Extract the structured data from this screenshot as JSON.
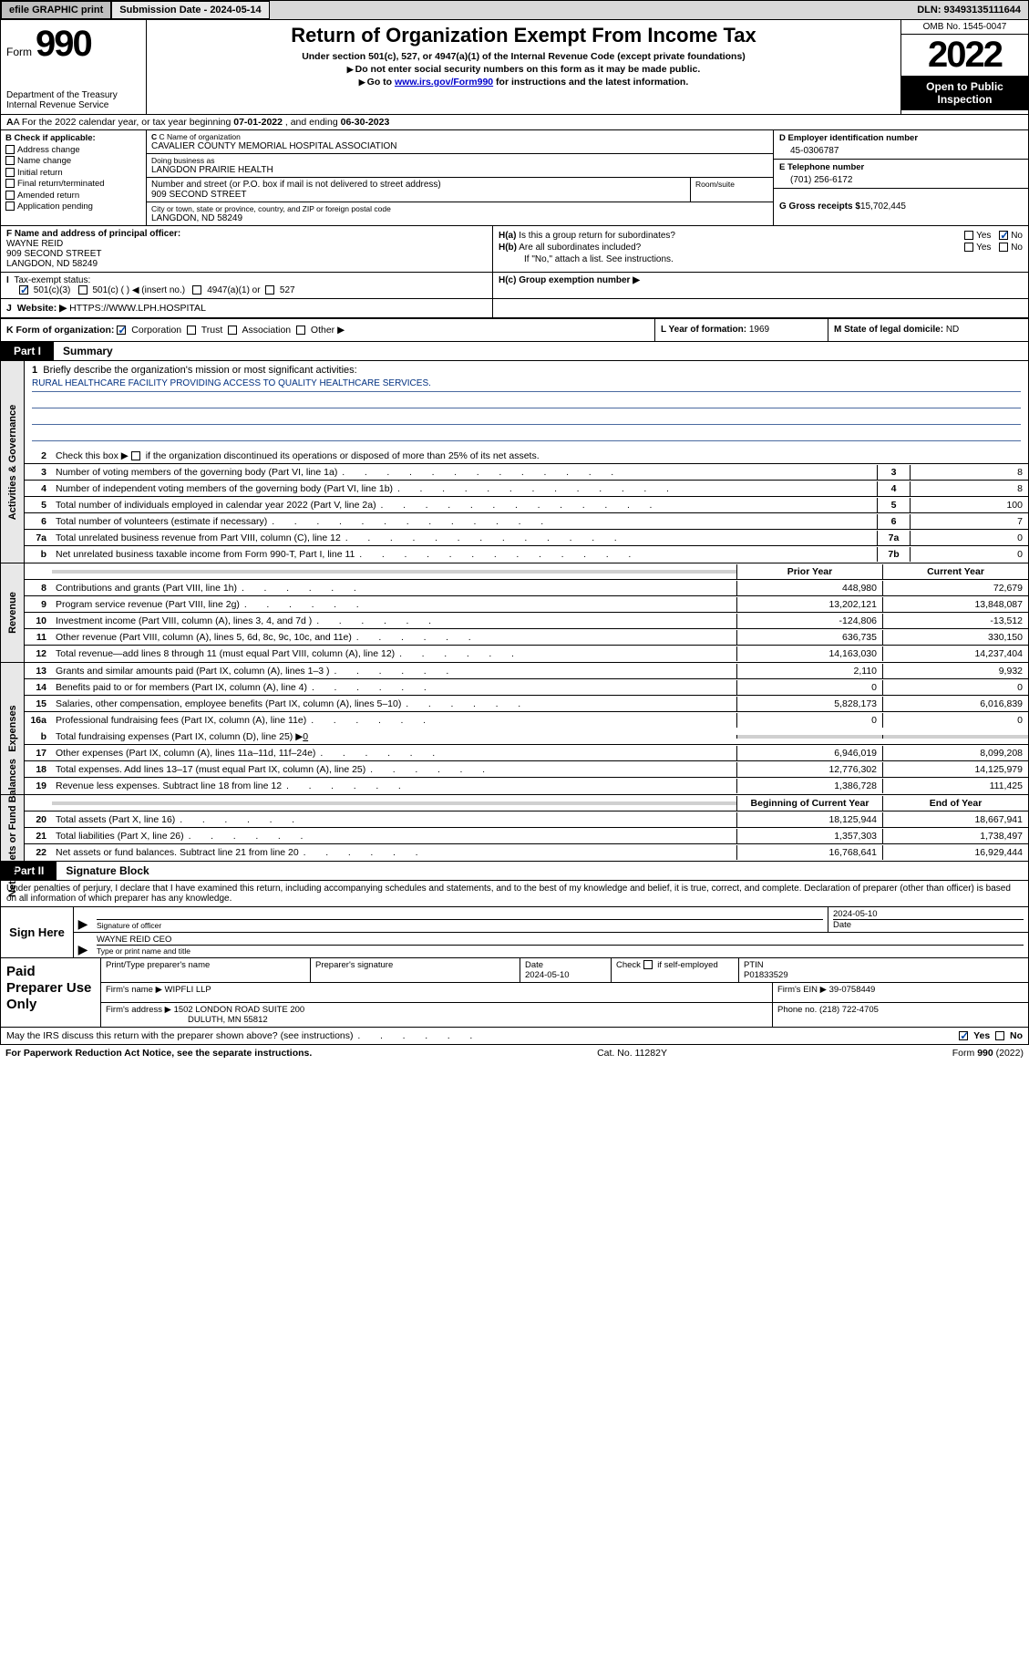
{
  "topbar": {
    "efile_label": "efile GRAPHIC print",
    "submission_label": "Submission Date - 2024-05-14",
    "dln_label": "DLN: 93493135111644"
  },
  "header": {
    "form_word": "Form",
    "form_number": "990",
    "dept": "Department of the Treasury Internal Revenue Service",
    "title": "Return of Organization Exempt From Income Tax",
    "subtitle": "Under section 501(c), 527, or 4947(a)(1) of the Internal Revenue Code (except private foundations)",
    "arrow1": "Do not enter social security numbers on this form as it may be made public.",
    "arrow2_pre": "Go to ",
    "arrow2_link": "www.irs.gov/Form990",
    "arrow2_post": " for instructions and the latest information.",
    "omb": "OMB No. 1545-0047",
    "year": "2022",
    "open_public": "Open to Public Inspection"
  },
  "row_a": {
    "prefix": "A For the 2022 calendar year, or tax year beginning ",
    "begin": "07-01-2022",
    "mid": " , and ending ",
    "end": "06-30-2023"
  },
  "section_b": {
    "heading": "B Check if applicable:",
    "items": [
      "Address change",
      "Name change",
      "Initial return",
      "Final return/terminated",
      "Amended return",
      "Application pending"
    ]
  },
  "section_c": {
    "name_lbl": "C Name of organization",
    "name": "CAVALIER COUNTY MEMORIAL HOSPITAL ASSOCIATION",
    "dba_lbl": "Doing business as",
    "dba": "LANGDON PRAIRIE HEALTH",
    "street_lbl": "Number and street (or P.O. box if mail is not delivered to street address)",
    "street": "909 SECOND STREET",
    "room_lbl": "Room/suite",
    "city_lbl": "City or town, state or province, country, and ZIP or foreign postal code",
    "city": "LANGDON, ND  58249"
  },
  "section_d": {
    "ein_lbl": "D Employer identification number",
    "ein": "45-0306787",
    "phone_lbl": "E Telephone number",
    "phone": "(701) 256-6172",
    "gross_lbl": "G Gross receipts $",
    "gross": "15,702,445"
  },
  "section_f": {
    "lbl": "F Name and address of principal officer:",
    "name": "WAYNE REID",
    "addr1": "909 SECOND STREET",
    "addr2": "LANGDON, ND  58249"
  },
  "section_h": {
    "a_lbl": "H(a)  Is this a group return for subordinates?",
    "b_lbl": "H(b)  Are all subordinates included?",
    "b_note": "If \"No,\" attach a list. See instructions.",
    "c_lbl": "H(c)  Group exemption number ▶",
    "yes": "Yes",
    "no": "No"
  },
  "section_i": {
    "lbl": "Tax-exempt status:",
    "opt1": "501(c)(3)",
    "opt2": "501(c) (  ) ◀ (insert no.)",
    "opt3": "4947(a)(1) or",
    "opt4": "527"
  },
  "section_j": {
    "lbl": "Website: ▶",
    "val": "HTTPS://WWW.LPH.HOSPITAL"
  },
  "section_k": {
    "lbl": "K Form of organization:",
    "opts": [
      "Corporation",
      "Trust",
      "Association",
      "Other ▶"
    ],
    "l_lbl": "L Year of formation:",
    "l_val": "1969",
    "m_lbl": "M State of legal domicile:",
    "m_val": "ND"
  },
  "parts": {
    "p1_tab": "Part I",
    "p1_title": "Summary",
    "p2_tab": "Part II",
    "p2_title": "Signature Block"
  },
  "summary": {
    "vtabs": {
      "gov": "Activities & Governance",
      "rev": "Revenue",
      "exp": "Expenses",
      "net": "Net Assets or Fund Balances"
    },
    "line1_lbl": "Briefly describe the organization's mission or most significant activities:",
    "line1_val": "RURAL HEALTHCARE FACILITY PROVIDING ACCESS TO QUALITY HEALTHCARE SERVICES.",
    "line2": "Check this box ▶       if the organization discontinued its operations or disposed of more than 25% of its net assets.",
    "rows_single": [
      {
        "n": "3",
        "d": "Number of voting members of the governing body (Part VI, line 1a)",
        "box": "3",
        "v": "8"
      },
      {
        "n": "4",
        "d": "Number of independent voting members of the governing body (Part VI, line 1b)",
        "box": "4",
        "v": "8"
      },
      {
        "n": "5",
        "d": "Total number of individuals employed in calendar year 2022 (Part V, line 2a)",
        "box": "5",
        "v": "100"
      },
      {
        "n": "6",
        "d": "Total number of volunteers (estimate if necessary)",
        "box": "6",
        "v": "7"
      },
      {
        "n": "7a",
        "d": "Total unrelated business revenue from Part VIII, column (C), line 12",
        "box": "7a",
        "v": "0"
      },
      {
        "n": "b",
        "d": "Net unrelated business taxable income from Form 990-T, Part I, line 11",
        "box": "7b",
        "v": "0"
      }
    ],
    "col_headers": {
      "prior": "Prior Year",
      "curr": "Current Year"
    },
    "rows_rev": [
      {
        "n": "8",
        "d": "Contributions and grants (Part VIII, line 1h)",
        "p": "448,980",
        "c": "72,679"
      },
      {
        "n": "9",
        "d": "Program service revenue (Part VIII, line 2g)",
        "p": "13,202,121",
        "c": "13,848,087"
      },
      {
        "n": "10",
        "d": "Investment income (Part VIII, column (A), lines 3, 4, and 7d )",
        "p": "-124,806",
        "c": "-13,512"
      },
      {
        "n": "11",
        "d": "Other revenue (Part VIII, column (A), lines 5, 6d, 8c, 9c, 10c, and 11e)",
        "p": "636,735",
        "c": "330,150"
      },
      {
        "n": "12",
        "d": "Total revenue—add lines 8 through 11 (must equal Part VIII, column (A), line 12)",
        "p": "14,163,030",
        "c": "14,237,404"
      }
    ],
    "rows_exp": [
      {
        "n": "13",
        "d": "Grants and similar amounts paid (Part IX, column (A), lines 1–3 )",
        "p": "2,110",
        "c": "9,932"
      },
      {
        "n": "14",
        "d": "Benefits paid to or for members (Part IX, column (A), line 4)",
        "p": "0",
        "c": "0"
      },
      {
        "n": "15",
        "d": "Salaries, other compensation, employee benefits (Part IX, column (A), lines 5–10)",
        "p": "5,828,173",
        "c": "6,016,839"
      },
      {
        "n": "16a",
        "d": "Professional fundraising fees (Part IX, column (A), line 11e)",
        "p": "0",
        "c": "0"
      }
    ],
    "row16b": {
      "n": "b",
      "d": "Total fundraising expenses (Part IX, column (D), line 25) ▶",
      "v": "0"
    },
    "rows_exp2": [
      {
        "n": "17",
        "d": "Other expenses (Part IX, column (A), lines 11a–11d, 11f–24e)",
        "p": "6,946,019",
        "c": "8,099,208"
      },
      {
        "n": "18",
        "d": "Total expenses. Add lines 13–17 (must equal Part IX, column (A), line 25)",
        "p": "12,776,302",
        "c": "14,125,979"
      },
      {
        "n": "19",
        "d": "Revenue less expenses. Subtract line 18 from line 12",
        "p": "1,386,728",
        "c": "111,425"
      }
    ],
    "net_headers": {
      "prior": "Beginning of Current Year",
      "curr": "End of Year"
    },
    "rows_net": [
      {
        "n": "20",
        "d": "Total assets (Part X, line 16)",
        "p": "18,125,944",
        "c": "18,667,941"
      },
      {
        "n": "21",
        "d": "Total liabilities (Part X, line 26)",
        "p": "1,357,303",
        "c": "1,738,497"
      },
      {
        "n": "22",
        "d": "Net assets or fund balances. Subtract line 21 from line 20",
        "p": "16,768,641",
        "c": "16,929,444"
      }
    ]
  },
  "sig": {
    "decl": "Under penalties of perjury, I declare that I have examined this return, including accompanying schedules and statements, and to the best of my knowledge and belief, it is true, correct, and complete. Declaration of preparer (other than officer) is based on all information of which preparer has any knowledge.",
    "sign_here": "Sign Here",
    "sig_officer": "Signature of officer",
    "date_lbl": "Date",
    "sig_date": "2024-05-10",
    "officer_name": "WAYNE REID  CEO",
    "type_name": "Type or print name and title",
    "paid_prep": "Paid Preparer Use Only",
    "prep_name_lbl": "Print/Type preparer's name",
    "prep_sig_lbl": "Preparer's signature",
    "prep_date_lbl": "Date",
    "prep_date": "2024-05-10",
    "check_if": "Check        if self-employed",
    "ptin_lbl": "PTIN",
    "ptin": "P01833529",
    "firm_name_lbl": "Firm's name    ▶",
    "firm_name": "WIPFLI LLP",
    "firm_ein_lbl": "Firm's EIN ▶",
    "firm_ein": "39-0758449",
    "firm_addr_lbl": "Firm's address ▶",
    "firm_addr1": "1502 LONDON ROAD SUITE 200",
    "firm_addr2": "DULUTH, MN  55812",
    "phone_lbl": "Phone no.",
    "phone": "(218) 722-4705"
  },
  "footer": {
    "discuss": "May the IRS discuss this return with the preparer shown above? (see instructions)",
    "yes": "Yes",
    "no": "No",
    "paperwork": "For Paperwork Reduction Act Notice, see the separate instructions.",
    "catno": "Cat. No. 11282Y",
    "formno": "Form 990 (2022)"
  }
}
